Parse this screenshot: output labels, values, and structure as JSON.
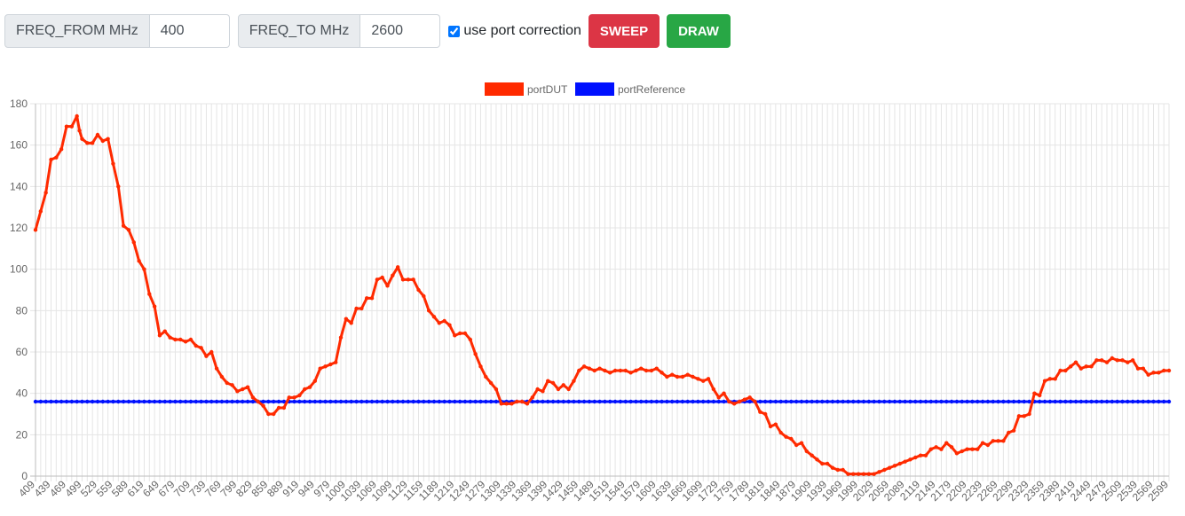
{
  "toolbar": {
    "freq_from": {
      "label": "FREQ_FROM MHz",
      "value": "400"
    },
    "freq_to": {
      "label": "FREQ_TO MHz",
      "value": "2600"
    },
    "port_correction": {
      "label": "use port correction",
      "checked": true
    },
    "sweep_label": "SWEEP",
    "draw_label": "DRAW"
  },
  "chart_data": {
    "type": "line",
    "title": "",
    "xlabel": "",
    "ylabel": "",
    "ylim": [
      0,
      180
    ],
    "y_ticks": [
      0,
      20,
      40,
      60,
      80,
      100,
      120,
      140,
      160,
      180
    ],
    "x_range": [
      409,
      2599
    ],
    "x_step": 10,
    "x_tick_labels": [
      "409",
      "439",
      "469",
      "499",
      "529",
      "559",
      "589",
      "619",
      "649",
      "679",
      "709",
      "739",
      "769",
      "799",
      "829",
      "859",
      "889",
      "919",
      "949",
      "979",
      "1009",
      "1039",
      "1069",
      "1099",
      "1129",
      "1159",
      "1189",
      "1219",
      "1249",
      "1279",
      "1309",
      "1339",
      "1369",
      "1399",
      "1429",
      "1459",
      "1489",
      "1519",
      "1549",
      "1579",
      "1609",
      "1639",
      "1669",
      "1699",
      "1729",
      "1759",
      "1789",
      "1819",
      "1849",
      "1879",
      "1909",
      "1939",
      "1969",
      "1999",
      "2029",
      "2059",
      "2089",
      "2119",
      "2149",
      "2179",
      "2209",
      "2239",
      "2269",
      "2299",
      "2329",
      "2359",
      "2389",
      "2419",
      "2449",
      "2479",
      "2509",
      "2539",
      "2569",
      "2599"
    ],
    "grid": true,
    "legend": "top-center",
    "series": [
      {
        "name": "portDUT",
        "color": "#ff2a00",
        "points": [
          [
            409,
            119
          ],
          [
            419,
            128
          ],
          [
            429,
            137
          ],
          [
            439,
            153
          ],
          [
            449,
            154
          ],
          [
            459,
            158
          ],
          [
            469,
            169
          ],
          [
            479,
            169
          ],
          [
            489,
            174
          ],
          [
            494,
            167
          ],
          [
            499,
            163
          ],
          [
            509,
            161
          ],
          [
            519,
            161
          ],
          [
            529,
            165
          ],
          [
            539,
            162
          ],
          [
            549,
            163
          ],
          [
            559,
            151
          ],
          [
            569,
            140
          ],
          [
            579,
            121
          ],
          [
            589,
            119
          ],
          [
            599,
            113
          ],
          [
            609,
            104
          ],
          [
            619,
            100
          ],
          [
            629,
            88
          ],
          [
            639,
            82
          ],
          [
            649,
            68
          ],
          [
            659,
            70
          ],
          [
            669,
            67
          ],
          [
            679,
            66
          ],
          [
            689,
            66
          ],
          [
            699,
            65
          ],
          [
            709,
            66
          ],
          [
            719,
            63
          ],
          [
            729,
            62
          ],
          [
            739,
            58
          ],
          [
            749,
            60
          ],
          [
            759,
            52
          ],
          [
            769,
            48
          ],
          [
            779,
            45
          ],
          [
            789,
            44
          ],
          [
            799,
            41
          ],
          [
            809,
            42
          ],
          [
            819,
            43
          ],
          [
            829,
            38
          ],
          [
            839,
            36
          ],
          [
            849,
            34
          ],
          [
            859,
            30
          ],
          [
            869,
            30
          ],
          [
            879,
            33
          ],
          [
            889,
            33
          ],
          [
            899,
            38
          ],
          [
            909,
            38
          ],
          [
            919,
            39
          ],
          [
            929,
            42
          ],
          [
            939,
            43
          ],
          [
            949,
            46
          ],
          [
            959,
            52
          ],
          [
            969,
            53
          ],
          [
            979,
            54
          ],
          [
            989,
            55
          ],
          [
            999,
            67
          ],
          [
            1009,
            76
          ],
          [
            1019,
            74
          ],
          [
            1029,
            81
          ],
          [
            1039,
            81
          ],
          [
            1049,
            86
          ],
          [
            1059,
            86
          ],
          [
            1069,
            95
          ],
          [
            1079,
            96
          ],
          [
            1089,
            92
          ],
          [
            1099,
            97
          ],
          [
            1109,
            101
          ],
          [
            1119,
            95
          ],
          [
            1129,
            95
          ],
          [
            1139,
            95
          ],
          [
            1149,
            90
          ],
          [
            1159,
            87
          ],
          [
            1169,
            80
          ],
          [
            1179,
            77
          ],
          [
            1189,
            74
          ],
          [
            1199,
            75
          ],
          [
            1209,
            73
          ],
          [
            1219,
            68
          ],
          [
            1229,
            69
          ],
          [
            1239,
            69
          ],
          [
            1249,
            66
          ],
          [
            1259,
            59
          ],
          [
            1269,
            53
          ],
          [
            1279,
            48
          ],
          [
            1289,
            45
          ],
          [
            1299,
            42
          ],
          [
            1309,
            35
          ],
          [
            1319,
            35
          ],
          [
            1329,
            35
          ],
          [
            1339,
            36
          ],
          [
            1349,
            36
          ],
          [
            1359,
            35
          ],
          [
            1369,
            38
          ],
          [
            1379,
            42
          ],
          [
            1389,
            41
          ],
          [
            1399,
            46
          ],
          [
            1409,
            45
          ],
          [
            1419,
            42
          ],
          [
            1429,
            44
          ],
          [
            1439,
            42
          ],
          [
            1449,
            46
          ],
          [
            1459,
            51
          ],
          [
            1469,
            53
          ],
          [
            1479,
            52
          ],
          [
            1489,
            51
          ],
          [
            1499,
            52
          ],
          [
            1509,
            51
          ],
          [
            1519,
            50
          ],
          [
            1529,
            51
          ],
          [
            1539,
            51
          ],
          [
            1549,
            51
          ],
          [
            1559,
            50
          ],
          [
            1569,
            51
          ],
          [
            1579,
            52
          ],
          [
            1589,
            51
          ],
          [
            1599,
            51
          ],
          [
            1609,
            52
          ],
          [
            1619,
            50
          ],
          [
            1629,
            48
          ],
          [
            1639,
            49
          ],
          [
            1649,
            48
          ],
          [
            1659,
            48
          ],
          [
            1669,
            49
          ],
          [
            1679,
            48
          ],
          [
            1689,
            47
          ],
          [
            1699,
            46
          ],
          [
            1709,
            47
          ],
          [
            1719,
            42
          ],
          [
            1729,
            38
          ],
          [
            1739,
            40
          ],
          [
            1749,
            36
          ],
          [
            1759,
            35
          ],
          [
            1769,
            36
          ],
          [
            1779,
            37
          ],
          [
            1789,
            38
          ],
          [
            1799,
            36
          ],
          [
            1809,
            31
          ],
          [
            1819,
            30
          ],
          [
            1829,
            24
          ],
          [
            1839,
            25
          ],
          [
            1849,
            21
          ],
          [
            1859,
            19
          ],
          [
            1869,
            18
          ],
          [
            1879,
            15
          ],
          [
            1889,
            16
          ],
          [
            1899,
            12
          ],
          [
            1909,
            10
          ],
          [
            1919,
            8
          ],
          [
            1929,
            6
          ],
          [
            1939,
            6
          ],
          [
            1949,
            4
          ],
          [
            1959,
            3
          ],
          [
            1969,
            3
          ],
          [
            1979,
            1
          ],
          [
            1989,
            1
          ],
          [
            1999,
            1
          ],
          [
            2009,
            1
          ],
          [
            2019,
            1
          ],
          [
            2029,
            1
          ],
          [
            2039,
            2
          ],
          [
            2049,
            3
          ],
          [
            2059,
            4
          ],
          [
            2069,
            5
          ],
          [
            2079,
            6
          ],
          [
            2089,
            7
          ],
          [
            2099,
            8
          ],
          [
            2109,
            9
          ],
          [
            2119,
            10
          ],
          [
            2129,
            10
          ],
          [
            2139,
            13
          ],
          [
            2149,
            14
          ],
          [
            2159,
            13
          ],
          [
            2169,
            16
          ],
          [
            2179,
            14
          ],
          [
            2189,
            11
          ],
          [
            2199,
            12
          ],
          [
            2209,
            13
          ],
          [
            2219,
            13
          ],
          [
            2229,
            13
          ],
          [
            2239,
            16
          ],
          [
            2249,
            15
          ],
          [
            2259,
            17
          ],
          [
            2269,
            17
          ],
          [
            2279,
            17
          ],
          [
            2289,
            21
          ],
          [
            2299,
            22
          ],
          [
            2309,
            29
          ],
          [
            2319,
            29
          ],
          [
            2329,
            30
          ],
          [
            2339,
            40
          ],
          [
            2349,
            39
          ],
          [
            2359,
            46
          ],
          [
            2369,
            47
          ],
          [
            2379,
            47
          ],
          [
            2389,
            51
          ],
          [
            2399,
            51
          ],
          [
            2409,
            53
          ],
          [
            2419,
            55
          ],
          [
            2429,
            52
          ],
          [
            2439,
            53
          ],
          [
            2449,
            53
          ],
          [
            2459,
            56
          ],
          [
            2469,
            56
          ],
          [
            2479,
            55
          ],
          [
            2489,
            57
          ],
          [
            2499,
            56
          ],
          [
            2509,
            56
          ],
          [
            2519,
            55
          ],
          [
            2529,
            56
          ],
          [
            2539,
            52
          ],
          [
            2549,
            52
          ],
          [
            2559,
            49
          ],
          [
            2569,
            50
          ],
          [
            2579,
            50
          ],
          [
            2589,
            51
          ],
          [
            2599,
            51
          ]
        ]
      },
      {
        "name": "portReference",
        "color": "#0010ff",
        "constant": 36
      }
    ]
  }
}
